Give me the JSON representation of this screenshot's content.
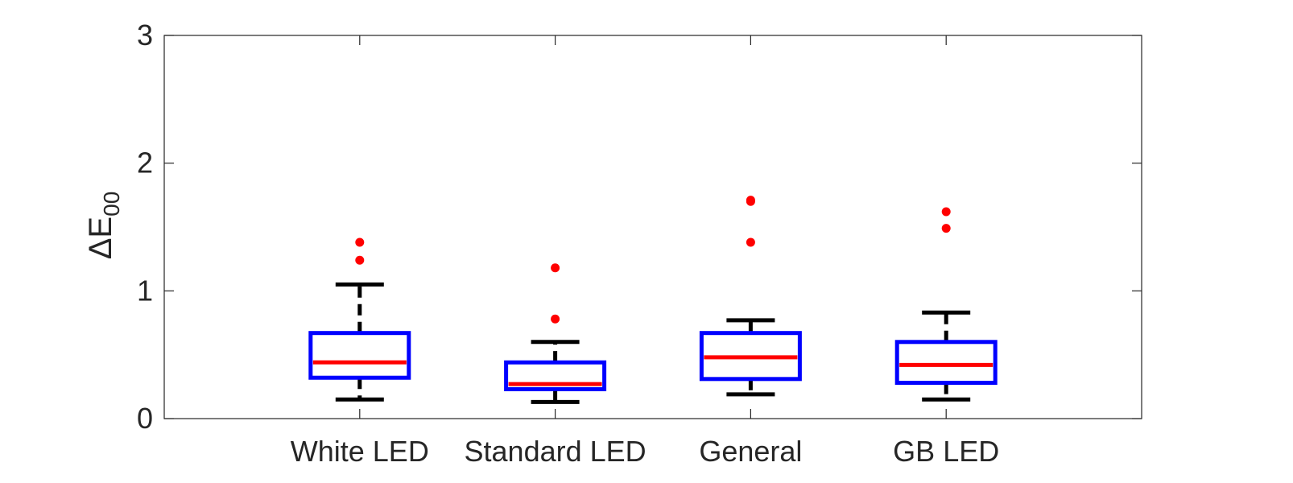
{
  "chart_data": {
    "type": "box",
    "title": "",
    "xlabel": "",
    "ylabel": "ΔE",
    "ylabel_subscript": "00",
    "ylim": [
      0,
      3
    ],
    "yticks": [
      "0",
      "1",
      "2",
      "3"
    ],
    "categories": [
      "White LED",
      "Standard LED",
      "General",
      "GB LED"
    ],
    "boxes": [
      {
        "q1": 0.32,
        "median": 0.44,
        "q3": 0.67,
        "whisker_low": 0.15,
        "whisker_high": 1.05,
        "outliers": [
          1.24,
          1.38
        ]
      },
      {
        "q1": 0.23,
        "median": 0.27,
        "q3": 0.44,
        "whisker_low": 0.13,
        "whisker_high": 0.6,
        "outliers": [
          0.78,
          1.18
        ]
      },
      {
        "q1": 0.31,
        "median": 0.48,
        "q3": 0.67,
        "whisker_low": 0.19,
        "whisker_high": 0.77,
        "outliers": [
          1.38,
          1.7,
          1.71
        ]
      },
      {
        "q1": 0.28,
        "median": 0.42,
        "q3": 0.6,
        "whisker_low": 0.15,
        "whisker_high": 0.83,
        "outliers": [
          1.49,
          1.62
        ]
      }
    ],
    "grid": false,
    "colors": {
      "box": "#0000ff",
      "median": "#ff0000",
      "whisker": "#000000",
      "outlier": "#ff0000",
      "axis": "#262626"
    }
  }
}
